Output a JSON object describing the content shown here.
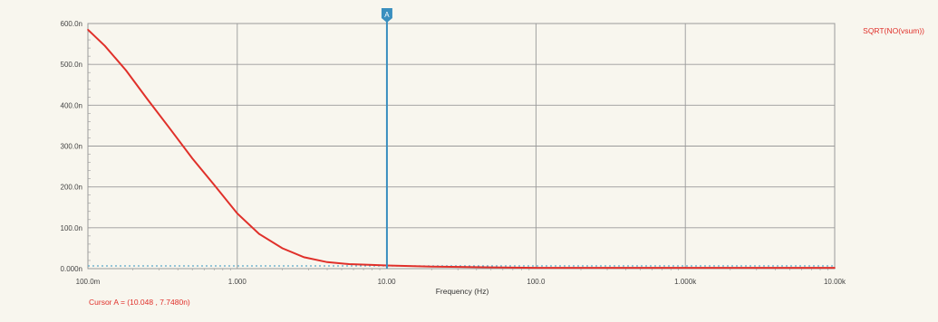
{
  "colors": {
    "background": "#f8f6ee",
    "grid": "#9a9a9a",
    "trace": "#e0302a",
    "cursor": "#3a8fbf",
    "noise": "#5aa8c8",
    "label_text": "#444444"
  },
  "legend": {
    "label": "SQRT(NO(vsum))"
  },
  "cursor": {
    "marker_label": "A",
    "readout": "Cursor A = (10.048 , 7.7480n)",
    "x": 10.048,
    "y_n": 7.748
  },
  "chart_data": {
    "type": "line",
    "x_scale": "log",
    "xlabel": "Frequency (Hz)",
    "ylabel": "",
    "xlim": [
      0.1,
      10000
    ],
    "ylim": [
      0,
      600
    ],
    "y_unit_note": "n",
    "x_ticks": [
      {
        "value": 0.1,
        "label": "100.0m"
      },
      {
        "value": 1,
        "label": "1.000"
      },
      {
        "value": 10,
        "label": "10.00"
      },
      {
        "value": 100,
        "label": "100.0"
      },
      {
        "value": 1000,
        "label": "1.000k"
      },
      {
        "value": 10000,
        "label": "10.00k"
      }
    ],
    "y_ticks": [
      {
        "value": 0,
        "label": "0.000n"
      },
      {
        "value": 100,
        "label": "100.0n"
      },
      {
        "value": 200,
        "label": "200.0n"
      },
      {
        "value": 300,
        "label": "300.0n"
      },
      {
        "value": 400,
        "label": "400.0n"
      },
      {
        "value": 500,
        "label": "500.0n"
      },
      {
        "value": 600,
        "label": "600.0n"
      }
    ],
    "grid": true,
    "legend_position": "top-right",
    "series": [
      {
        "name": "SQRT(NO(vsum))",
        "x": [
          0.1,
          0.13,
          0.18,
          0.25,
          0.35,
          0.5,
          0.7,
          1.0,
          1.4,
          2.0,
          2.8,
          4.0,
          5.6,
          8.0,
          10.0,
          20,
          50,
          100,
          1000,
          10000
        ],
        "y": [
          585,
          545,
          485,
          415,
          345,
          270,
          205,
          135,
          85,
          50,
          28,
          16,
          11,
          9,
          7.748,
          5,
          3,
          2,
          2,
          2
        ]
      }
    ]
  }
}
